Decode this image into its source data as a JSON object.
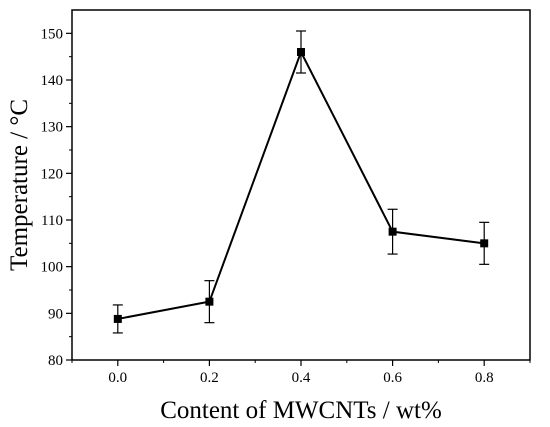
{
  "chart_data": {
    "type": "line",
    "xlabel": "Content of MWCNTs / wt%",
    "ylabel": "Temperature / °C",
    "xlim": [
      -0.1,
      0.9
    ],
    "ylim": [
      80,
      155
    ],
    "xticks": [
      "0.0",
      "0.2",
      "0.4",
      "0.6",
      "0.8"
    ],
    "yticks": [
      "80",
      "90",
      "100",
      "110",
      "120",
      "130",
      "140",
      "150"
    ],
    "grid": false,
    "series": [
      {
        "x": [
          0.0,
          0.2,
          0.4,
          0.6,
          0.8
        ],
        "values": [
          88.8,
          92.5,
          146.0,
          107.5,
          105.0
        ],
        "error": [
          3.0,
          4.5,
          4.5,
          4.8,
          4.5
        ],
        "marker": "square",
        "color": "#000000"
      }
    ]
  }
}
